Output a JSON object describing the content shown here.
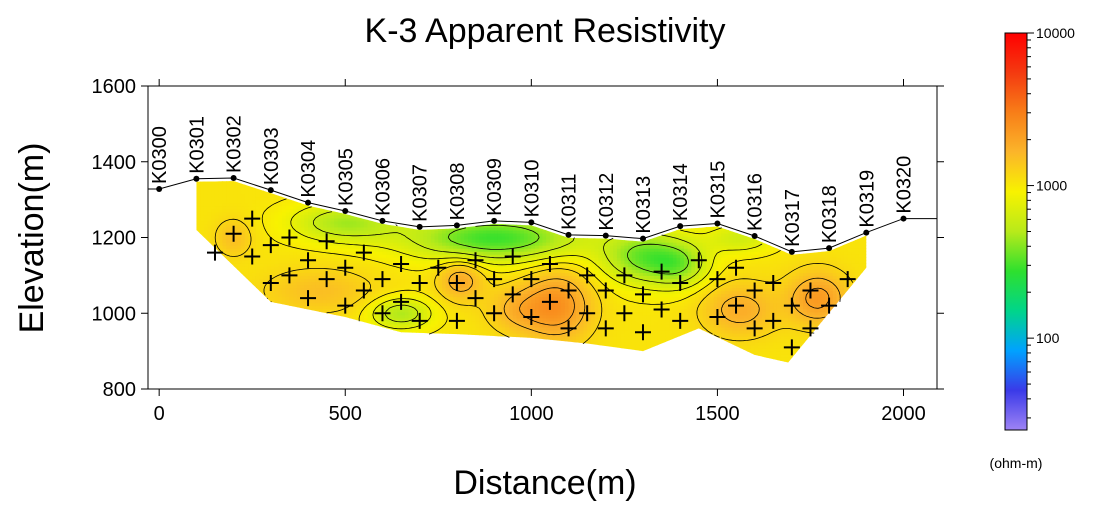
{
  "chart_data": {
    "type": "heatmap",
    "title": "K-3 Apparent Resistivity",
    "xlabel": "Distance(m)",
    "ylabel": "Elevation(m)",
    "xlim": [
      -30,
      2090
    ],
    "ylim": [
      800,
      1600
    ],
    "x_ticks": [
      0,
      500,
      1000,
      1500,
      2000
    ],
    "y_ticks": [
      800,
      1000,
      1200,
      1400,
      1600
    ],
    "colorbar": {
      "unit": "(ohm-m)",
      "scale": "log",
      "range": [
        25,
        10000
      ],
      "ticks": [
        100,
        1000,
        10000
      ],
      "colors": [
        "#9e83f5",
        "#3a3ae8",
        "#00a2ff",
        "#00d58a",
        "#2ee02e",
        "#b8ea1a",
        "#f8f200",
        "#fbb52a",
        "#f87e18",
        "#f43a10",
        "#ff0000"
      ]
    },
    "stations": [
      {
        "name": "K0300",
        "x": 0,
        "elev": 1328
      },
      {
        "name": "K0301",
        "x": 100,
        "elev": 1355
      },
      {
        "name": "K0302",
        "x": 200,
        "elev": 1357
      },
      {
        "name": "K0303",
        "x": 300,
        "elev": 1325
      },
      {
        "name": "K0304",
        "x": 400,
        "elev": 1292
      },
      {
        "name": "K0305",
        "x": 500,
        "elev": 1270
      },
      {
        "name": "K0306",
        "x": 600,
        "elev": 1244
      },
      {
        "name": "K0307",
        "x": 700,
        "elev": 1228
      },
      {
        "name": "K0308",
        "x": 800,
        "elev": 1232
      },
      {
        "name": "K0309",
        "x": 900,
        "elev": 1244
      },
      {
        "name": "K0310",
        "x": 1000,
        "elev": 1240
      },
      {
        "name": "K0311",
        "x": 1100,
        "elev": 1207
      },
      {
        "name": "K0312",
        "x": 1200,
        "elev": 1205
      },
      {
        "name": "K0313",
        "x": 1300,
        "elev": 1197
      },
      {
        "name": "K0314",
        "x": 1400,
        "elev": 1230
      },
      {
        "name": "K0315",
        "x": 1500,
        "elev": 1237
      },
      {
        "name": "K0316",
        "x": 1600,
        "elev": 1204
      },
      {
        "name": "K0317",
        "x": 1700,
        "elev": 1162
      },
      {
        "name": "K0318",
        "x": 1800,
        "elev": 1172
      },
      {
        "name": "K0319",
        "x": 1900,
        "elev": 1213
      },
      {
        "name": "K0320",
        "x": 2000,
        "elev": 1250
      }
    ],
    "data_points": [
      [
        150,
        1160
      ],
      [
        200,
        1210
      ],
      [
        250,
        1250
      ],
      [
        250,
        1150
      ],
      [
        300,
        1180
      ],
      [
        350,
        1200
      ],
      [
        300,
        1080
      ],
      [
        350,
        1100
      ],
      [
        400,
        1040
      ],
      [
        400,
        1140
      ],
      [
        450,
        1190
      ],
      [
        450,
        1090
      ],
      [
        500,
        1120
      ],
      [
        500,
        1020
      ],
      [
        550,
        1160
      ],
      [
        550,
        1060
      ],
      [
        600,
        1090
      ],
      [
        600,
        1000
      ],
      [
        650,
        1130
      ],
      [
        650,
        1030
      ],
      [
        700,
        1080
      ],
      [
        700,
        980
      ],
      [
        750,
        1120
      ],
      [
        800,
        1080
      ],
      [
        800,
        980
      ],
      [
        850,
        1140
      ],
      [
        850,
        1040
      ],
      [
        900,
        1090
      ],
      [
        900,
        1000
      ],
      [
        950,
        1150
      ],
      [
        950,
        1050
      ],
      [
        1000,
        1090
      ],
      [
        1000,
        990
      ],
      [
        1050,
        1130
      ],
      [
        1050,
        1030
      ],
      [
        1100,
        1060
      ],
      [
        1100,
        960
      ],
      [
        1150,
        1100
      ],
      [
        1150,
        1000
      ],
      [
        1200,
        1060
      ],
      [
        1200,
        960
      ],
      [
        1250,
        1100
      ],
      [
        1250,
        1000
      ],
      [
        1300,
        1050
      ],
      [
        1300,
        950
      ],
      [
        1350,
        1110
      ],
      [
        1350,
        1010
      ],
      [
        1400,
        1080
      ],
      [
        1400,
        980
      ],
      [
        1450,
        1140
      ],
      [
        1500,
        1090
      ],
      [
        1500,
        990
      ],
      [
        1550,
        1120
      ],
      [
        1550,
        1020
      ],
      [
        1600,
        1060
      ],
      [
        1600,
        960
      ],
      [
        1650,
        1080
      ],
      [
        1650,
        980
      ],
      [
        1700,
        1020
      ],
      [
        1700,
        910
      ],
      [
        1750,
        1060
      ],
      [
        1750,
        960
      ],
      [
        1800,
        1020
      ],
      [
        1850,
        1090
      ]
    ],
    "section_bottom": [
      [
        100,
        1220
      ],
      [
        300,
        1030
      ],
      [
        500,
        990
      ],
      [
        650,
        950
      ],
      [
        800,
        945
      ],
      [
        1000,
        935
      ],
      [
        1150,
        920
      ],
      [
        1300,
        900
      ],
      [
        1450,
        960
      ],
      [
        1600,
        890
      ],
      [
        1690,
        870
      ],
      [
        1900,
        1120
      ]
    ],
    "value_model": {
      "base": 1050,
      "anomalies": [
        {
          "x": 900,
          "elev": 1200,
          "sx": 230,
          "sy": 60,
          "ohm": 290
        },
        {
          "x": 1300,
          "elev": 1150,
          "sx": 110,
          "sy": 70,
          "ohm": 380
        },
        {
          "x": 500,
          "elev": 1240,
          "sx": 140,
          "sy": 50,
          "ohm": 470
        },
        {
          "x": 650,
          "elev": 1000,
          "sx": 80,
          "sy": 40,
          "ohm": 480
        },
        {
          "x": 1400,
          "elev": 1130,
          "sx": 80,
          "sy": 60,
          "ohm": 500
        },
        {
          "x": 1560,
          "elev": 1200,
          "sx": 90,
          "sy": 40,
          "ohm": 630
        },
        {
          "x": 1070,
          "elev": 1020,
          "sx": 90,
          "sy": 90,
          "ohm": 2400
        },
        {
          "x": 810,
          "elev": 1090,
          "sx": 60,
          "sy": 55,
          "ohm": 1900
        },
        {
          "x": 1770,
          "elev": 1040,
          "sx": 80,
          "sy": 70,
          "ohm": 2200
        },
        {
          "x": 1560,
          "elev": 1010,
          "sx": 100,
          "sy": 70,
          "ohm": 1800
        },
        {
          "x": 200,
          "elev": 1200,
          "sx": 50,
          "sy": 50,
          "ohm": 1500
        },
        {
          "x": 430,
          "elev": 1060,
          "sx": 150,
          "sy": 60,
          "ohm": 1500
        },
        {
          "x": 960,
          "elev": 1010,
          "sx": 80,
          "sy": 60,
          "ohm": 1600
        }
      ]
    }
  }
}
